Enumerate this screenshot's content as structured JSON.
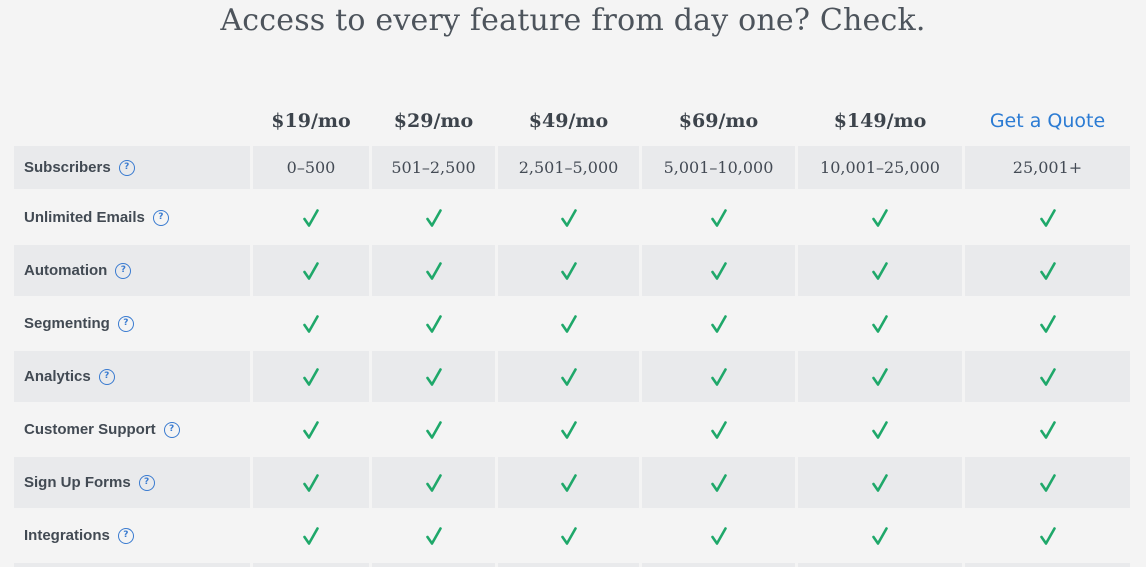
{
  "headline": "Access to every feature from day one? Check.",
  "plans": [
    {
      "price": "$19/mo",
      "subscribers": "0–500",
      "is_link": false
    },
    {
      "price": "$29/mo",
      "subscribers": "501–2,500",
      "is_link": false
    },
    {
      "price": "$49/mo",
      "subscribers": "2,501–5,000",
      "is_link": false
    },
    {
      "price": "$69/mo",
      "subscribers": "5,001–10,000",
      "is_link": false
    },
    {
      "price": "$149/mo",
      "subscribers": "10,001–25,000",
      "is_link": false
    },
    {
      "price": "Get a Quote",
      "subscribers": "25,001+",
      "is_link": true
    }
  ],
  "subscribers_label": "Subscribers",
  "features": [
    {
      "label": "Unlimited Emails"
    },
    {
      "label": "Automation"
    },
    {
      "label": "Segmenting"
    },
    {
      "label": "Analytics"
    },
    {
      "label": "Customer Support"
    },
    {
      "label": "Sign Up Forms"
    },
    {
      "label": "Integrations"
    }
  ],
  "icons": {
    "help": "question-circle-icon",
    "check": "checkmark-icon"
  },
  "colors": {
    "check": "#1fa86a",
    "link": "#2b7bd3",
    "help": "#3a7bd0",
    "shaded_row": "#e9eaec",
    "background": "#f4f4f4"
  }
}
